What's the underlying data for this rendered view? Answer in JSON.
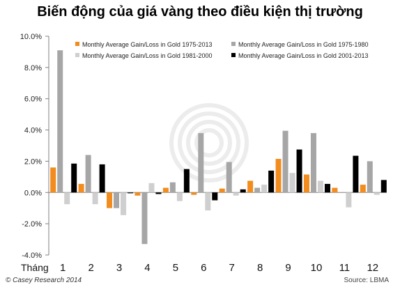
{
  "title": "Biến động của giá vàng theo điều kiện thị trường",
  "footer": {
    "left": "© Casey Research 2014",
    "right": "Source: LBMA"
  },
  "chart_data": {
    "type": "bar",
    "xlabel": "Tháng",
    "categories": [
      "1",
      "2",
      "3",
      "4",
      "5",
      "6",
      "7",
      "8",
      "9",
      "10",
      "11",
      "12"
    ],
    "yticks": [
      "-4.0%",
      "-2.0%",
      "0.0%",
      "2.0%",
      "4.0%",
      "6.0%",
      "8.0%",
      "10.0%"
    ],
    "ylim": [
      -4,
      10
    ],
    "grid": false,
    "legend_position": "top",
    "series": [
      {
        "name": "Monthly Average Gain/Loss in Gold 1975-2013",
        "color": "#f28c1e",
        "values": [
          1.6,
          0.55,
          -1.0,
          -0.2,
          0.3,
          -0.15,
          0.25,
          0.75,
          2.15,
          1.15,
          0.3,
          0.5
        ]
      },
      {
        "name": "Monthly Average Gain/Loss in Gold 1975-1980",
        "color": "#a6a6a6",
        "values": [
          9.1,
          2.4,
          -1.0,
          -3.3,
          0.65,
          3.8,
          1.95,
          0.3,
          3.95,
          3.8,
          0.0,
          2.0
        ]
      },
      {
        "name": "Monthly Average Gain/Loss in Gold 1981-2000",
        "color": "#cfcfcf",
        "values": [
          -0.75,
          -0.75,
          -1.45,
          0.6,
          -0.55,
          -1.15,
          -0.2,
          0.5,
          1.25,
          0.75,
          -0.95,
          -0.15
        ]
      },
      {
        "name": "Monthly Average Gain/Loss in Gold 2001-2013",
        "color": "#000000",
        "values": [
          1.85,
          1.8,
          -0.05,
          -0.1,
          1.5,
          -0.5,
          0.2,
          1.4,
          2.75,
          0.55,
          2.35,
          0.8
        ]
      }
    ]
  }
}
